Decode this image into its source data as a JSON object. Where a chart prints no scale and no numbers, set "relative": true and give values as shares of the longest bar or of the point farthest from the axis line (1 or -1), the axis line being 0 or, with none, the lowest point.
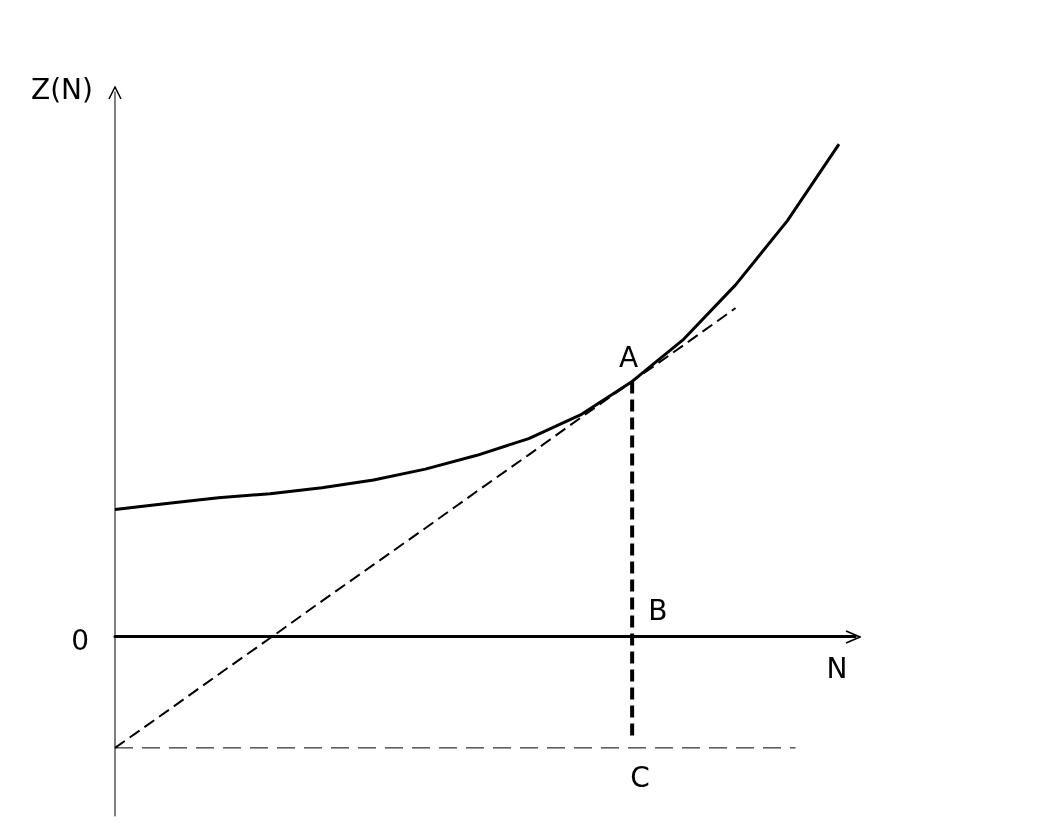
{
  "chart_data": {
    "type": "line",
    "relative": true,
    "xlabel": "N",
    "ylabel": "Z(N)",
    "categories": [
      null,
      null,
      null,
      null,
      null,
      null,
      null,
      null,
      null,
      null,
      null,
      null,
      null,
      null,
      null
    ],
    "legend": false,
    "marker": "none",
    "series": [
      {
        "color": "#000000",
        "line_style": "solid",
        "values": [
          0.258,
          0.27,
          0.282,
          0.29,
          0.302,
          0.318,
          0.34,
          0.368,
          0.402,
          0.45,
          0.518,
          0.604,
          0.714,
          0.844,
          1
        ]
      },
      {
        "color": "#000000",
        "line_style": "dashed",
        "values": [
          -0.226,
          -0.152,
          -0.077,
          -0.003,
          0.072,
          0.146,
          0.22,
          0.295,
          0.369,
          0.444,
          0.518,
          0.592,
          0.667,
          null,
          null
        ]
      }
    ],
    "ref_lines": [
      {
        "axis": "y",
        "value": -0.226,
        "color": "#000000",
        "line_style": "dashed"
      }
    ],
    "annotations": [
      "0",
      "A",
      "B",
      "C"
    ]
  }
}
